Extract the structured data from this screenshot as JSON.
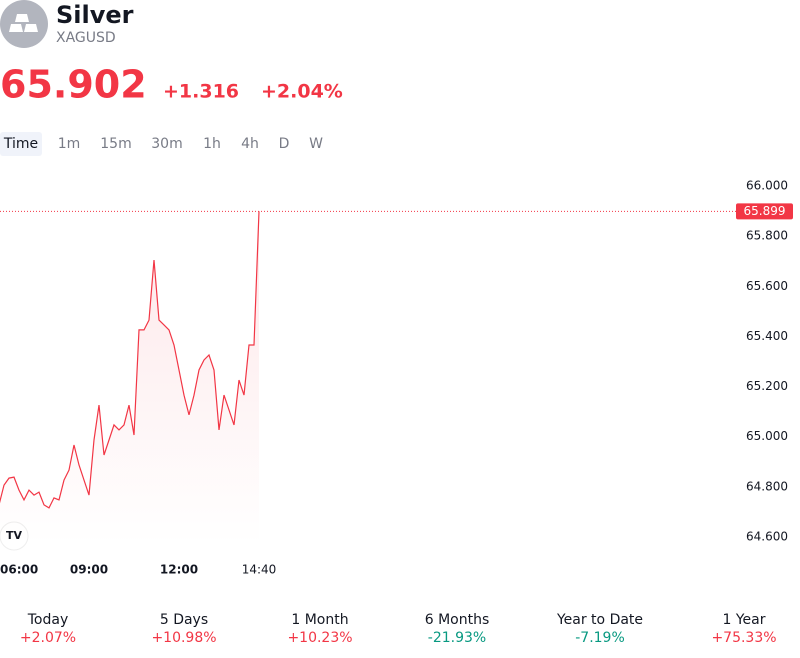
{
  "header": {
    "title": "Silver",
    "symbol": "XAGUSD",
    "price": "65.902",
    "change": "+1.316",
    "change_percent": "+2.04%",
    "color": "#f23645"
  },
  "intervals": [
    "Time",
    "1m",
    "15m",
    "30m",
    "1h",
    "4h",
    "D",
    "W"
  ],
  "chart_data": {
    "type": "area",
    "color": "#f23645",
    "x": [
      "06:00",
      "06:10",
      "06:20",
      "06:30",
      "06:40",
      "06:50",
      "07:00",
      "07:10",
      "07:20",
      "07:30",
      "07:40",
      "07:50",
      "08:00",
      "08:10",
      "08:20",
      "08:30",
      "08:40",
      "08:50",
      "09:00",
      "09:10",
      "09:20",
      "09:30",
      "09:40",
      "09:50",
      "10:00",
      "10:10",
      "10:20",
      "10:30",
      "10:40",
      "10:50",
      "11:00",
      "11:10",
      "11:20",
      "11:30",
      "11:40",
      "11:50",
      "12:00",
      "12:10",
      "12:20",
      "12:30",
      "12:40",
      "12:50",
      "13:00",
      "13:10",
      "13:20",
      "13:30",
      "13:40",
      "13:50",
      "14:00",
      "14:10",
      "14:20",
      "14:30",
      "14:40"
    ],
    "values": [
      64.728,
      64.807,
      64.835,
      64.839,
      64.787,
      64.748,
      64.787,
      64.767,
      64.779,
      64.728,
      64.716,
      64.756,
      64.748,
      64.827,
      64.867,
      64.967,
      64.887,
      64.827,
      64.767,
      64.987,
      65.126,
      64.927,
      64.987,
      65.047,
      65.027,
      65.047,
      65.126,
      65.007,
      65.426,
      65.426,
      65.465,
      65.705,
      65.465,
      65.446,
      65.426,
      65.366,
      65.266,
      65.166,
      65.087,
      65.166,
      65.266,
      65.306,
      65.326,
      65.266,
      65.027,
      65.166,
      65.107,
      65.047,
      65.226,
      65.166,
      65.366,
      65.366,
      65.899
    ],
    "xlim": [
      "06:00",
      "14:40"
    ],
    "xticks": [
      "06:00",
      "09:00",
      "12:00",
      "14:40"
    ],
    "ylim": [
      64.6,
      66.0
    ],
    "yticks": [
      {
        "value": 64.6,
        "label": "64.600"
      },
      {
        "value": 64.8,
        "label": "64.800"
      },
      {
        "value": 65.0,
        "label": "65.000"
      },
      {
        "value": 65.2,
        "label": "65.200"
      },
      {
        "value": 65.4,
        "label": "65.400"
      },
      {
        "value": 65.6,
        "label": "65.600"
      },
      {
        "value": 65.8,
        "label": "65.800"
      },
      {
        "value": 66.0,
        "label": "66.000"
      }
    ],
    "price_line": {
      "value": 65.899,
      "label": "65.899"
    }
  },
  "performance": [
    {
      "label": "Today",
      "value": "+2.07%",
      "color": "#f23645"
    },
    {
      "label": "5 Days",
      "value": "+10.98%",
      "color": "#f23645"
    },
    {
      "label": "1 Month",
      "value": "+10.23%",
      "color": "#f23645"
    },
    {
      "label": "6 Months",
      "value": "-21.93%",
      "color": "#089981"
    },
    {
      "label": "Year to Date",
      "value": "-7.19%",
      "color": "#089981"
    },
    {
      "label": "1 Year",
      "value": "+75.33%",
      "color": "#f23645"
    }
  ]
}
